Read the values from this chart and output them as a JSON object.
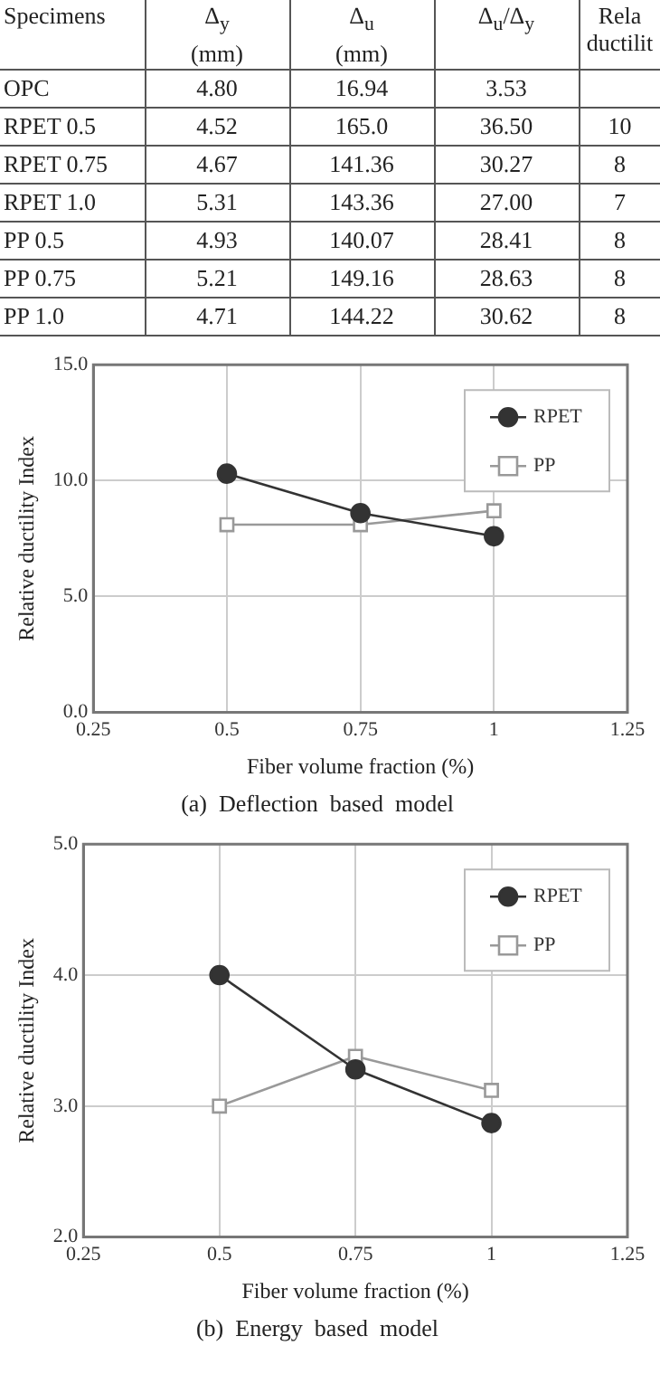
{
  "chart_data": [
    {
      "type": "other",
      "categories": [
        "Specimens",
        "Δ$_{y}$\n(mm)",
        "Δ$_{u}$\n(mm)",
        "Δ$_{u}$/Δ$_{y}$",
        "Rela\nductilit"
      ],
      "y_categories": [
        "OPC",
        "RPET 0.5",
        "RPET 0.75",
        "RPET 1.0",
        "PP 0.5",
        "PP 0.75",
        "PP 1.0"
      ],
      "cell_labels": [
        [
          "4.80",
          "16.94",
          "3.53",
          null
        ],
        [
          "4.52",
          "165.0",
          "36.50",
          "10"
        ],
        [
          "4.67",
          "141.36",
          "30.27",
          "8"
        ],
        [
          "5.31",
          "143.36",
          "27.00",
          "7"
        ],
        [
          "4.93",
          "140.07",
          "28.41",
          "8"
        ],
        [
          "5.21",
          "149.16",
          "28.63",
          "8"
        ],
        [
          "4.71",
          "144.22",
          "30.62",
          "8"
        ]
      ]
    },
    {
      "type": "line",
      "title": "(a)  Deflection  based  model",
      "xlabel": "Fiber volume fraction (%)",
      "ylabel": "Relative ductility Index",
      "x": [
        0.5,
        0.75,
        1
      ],
      "xlim": [
        0.25,
        1.25
      ],
      "xticks": [
        0.25,
        0.5,
        0.75,
        1,
        1.25
      ],
      "ylim": [
        0,
        15
      ],
      "yticks": [
        {
          "value": 0,
          "label": "0.0"
        },
        {
          "value": 5,
          "label": "5.0"
        },
        {
          "value": 10,
          "label": "10.0"
        },
        {
          "value": 15,
          "label": "15.0"
        }
      ],
      "grid": true,
      "legend": "top right",
      "series": [
        {
          "name": "RPET",
          "color": "#333333",
          "marker": "circle",
          "values": [
            10.3,
            8.6,
            7.6
          ]
        },
        {
          "name": "PP",
          "color": "#999999",
          "marker": "square",
          "values": [
            8.1,
            8.1,
            8.7
          ]
        }
      ]
    },
    {
      "type": "line",
      "title": "(b)  Energy  based  model",
      "xlabel": "Fiber volume fraction (%)",
      "ylabel": "Relative ductility Index",
      "x": [
        0.5,
        0.75,
        1
      ],
      "xlim": [
        0.25,
        1.25
      ],
      "xticks": [
        0.25,
        0.5,
        0.75,
        1,
        1.25
      ],
      "ylim": [
        2,
        5
      ],
      "yticks": [
        {
          "value": 2,
          "label": "2.0"
        },
        {
          "value": 3,
          "label": "3.0"
        },
        {
          "value": 4,
          "label": "4.0"
        },
        {
          "value": 5,
          "label": "5.0"
        }
      ],
      "grid": true,
      "legend": "top right",
      "series": [
        {
          "name": "RPET",
          "color": "#333333",
          "marker": "circle",
          "values": [
            4.0,
            3.28,
            2.87
          ]
        },
        {
          "name": "PP",
          "color": "#999999",
          "marker": "square",
          "values": [
            3.0,
            3.38,
            3.12
          ]
        }
      ]
    }
  ]
}
